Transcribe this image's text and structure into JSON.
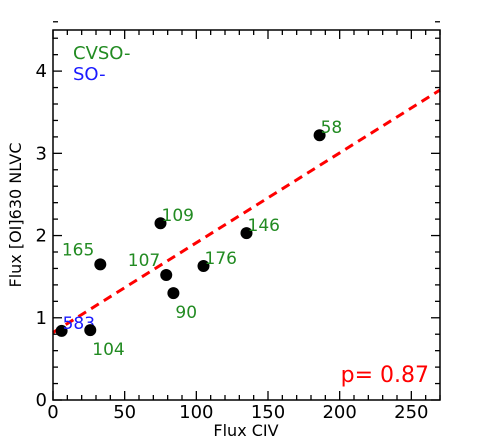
{
  "chart_data": {
    "type": "scatter",
    "xlabel": "Flux CIV",
    "ylabel": "Flux [OI]630 NLVC",
    "xlim": [
      0,
      270
    ],
    "ylim": [
      0,
      4.5
    ],
    "x_ticks": [
      0,
      50,
      100,
      150,
      200,
      250
    ],
    "y_ticks": [
      0,
      1,
      2,
      3,
      4
    ],
    "x_tick_labels": [
      "0",
      "50",
      "100",
      "150",
      "200",
      "250"
    ],
    "y_tick_labels": [
      "0",
      "1",
      "2",
      "3",
      "4"
    ],
    "legend": [
      {
        "label": "CVSO-",
        "color": "#228B22"
      },
      {
        "label": "SO-",
        "color": "#1a1aff"
      }
    ],
    "points": [
      {
        "label": "58",
        "x": 186,
        "y": 3.22,
        "color": "#228B22",
        "label_pos": "upper-right"
      },
      {
        "label": "109",
        "x": 75,
        "y": 2.15,
        "color": "#228B22",
        "label_pos": "upper-right"
      },
      {
        "label": "146",
        "x": 135,
        "y": 2.03,
        "color": "#228B22",
        "label_pos": "upper-right"
      },
      {
        "label": "165",
        "x": 33,
        "y": 1.65,
        "color": "#228B22",
        "label_pos": "upper-left"
      },
      {
        "label": "107",
        "x": 79,
        "y": 1.52,
        "color": "#228B22",
        "label_pos": "upper-left"
      },
      {
        "label": "176",
        "x": 105,
        "y": 1.63,
        "color": "#228B22",
        "label_pos": "upper-right"
      },
      {
        "label": "90",
        "x": 84,
        "y": 1.3,
        "color": "#228B22",
        "label_pos": "lower-right"
      },
      {
        "label": "583",
        "x": 6,
        "y": 0.84,
        "color": "#1a1aff",
        "label_pos": "upper-right"
      },
      {
        "label": "104",
        "x": 26,
        "y": 0.85,
        "color": "#228B22",
        "label_pos": "lower-right"
      }
    ],
    "fit_line": {
      "x": [
        0,
        270
      ],
      "y": [
        0.82,
        3.77
      ],
      "color": "#ff0000",
      "style": "dashed"
    },
    "correlation_text": "p=  0.87",
    "correlation_color": "#ff0000"
  }
}
